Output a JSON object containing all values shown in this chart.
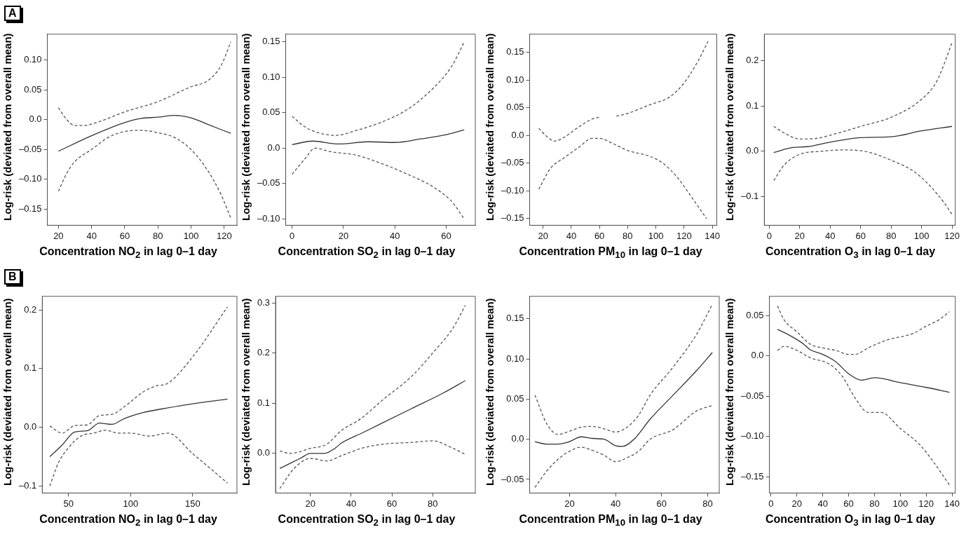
{
  "chart_data": [
    {
      "type": "line",
      "xlabel": "Concentration NO$_{2}$ in lag 0–1 day",
      "ylabel": "Log-risk (deviated from overall mean)",
      "annotations": [
        "A"
      ],
      "xlim": [
        13.3,
        127.7
      ],
      "ylim": [
        -0.177,
        0.143
      ],
      "xticks": [
        20,
        40,
        60,
        80,
        100,
        120
      ],
      "yticks": [
        {
          "value": -0.15,
          "label": "–0.15"
        },
        {
          "value": -0.1,
          "label": "–0.10"
        },
        {
          "value": -0.05,
          "label": "–0.05"
        },
        {
          "value": 0,
          "label": "0.0"
        },
        {
          "value": 0.05,
          "label": "0.05"
        },
        {
          "value": 0.1,
          "label": "0.10"
        }
      ],
      "series": [
        {
          "color": "#333333",
          "line_style": "solid",
          "x": [
            20,
            40,
            60,
            70,
            80,
            90,
            100,
            110,
            124
          ],
          "values": [
            -0.053,
            -0.027,
            -0.005,
            0.002,
            0.004,
            0.007,
            0.003,
            -0.008,
            -0.023
          ]
        },
        {
          "color": "#555555",
          "line_style": "dashed",
          "x": [
            20,
            25,
            30,
            35,
            45,
            60,
            80,
            100,
            110,
            118,
            124
          ],
          "values": [
            0.02,
            0.0,
            -0.01,
            -0.01,
            -0.003,
            0.013,
            0.03,
            0.055,
            0.065,
            0.09,
            0.13
          ]
        },
        {
          "color": "#555555",
          "line_style": "dashed",
          "x": [
            20,
            25,
            30,
            40,
            50,
            60,
            70,
            80,
            90,
            100,
            110,
            118,
            124
          ],
          "values": [
            -0.12,
            -0.09,
            -0.07,
            -0.05,
            -0.03,
            -0.02,
            -0.018,
            -0.022,
            -0.03,
            -0.05,
            -0.085,
            -0.125,
            -0.165
          ]
        }
      ]
    },
    {
      "type": "line",
      "xlabel": "Concentration SO$_{2}$ in lag 0–1 day",
      "ylabel": "Log-risk (deviated from overall mean)",
      "xlim": [
        -2.5,
        71.3
      ],
      "ylim": [
        -0.109,
        0.161
      ],
      "xticks": [
        0,
        20,
        40,
        60
      ],
      "yticks": [
        {
          "value": -0.1,
          "label": "–0.10"
        },
        {
          "value": -0.05,
          "label": "–0.05"
        },
        {
          "value": 0,
          "label": "0.0"
        },
        {
          "value": 0.05,
          "label": "0.05"
        },
        {
          "value": 0.1,
          "label": "0.10"
        },
        {
          "value": 0.15,
          "label": "0.15"
        }
      ],
      "series": [
        {
          "color": "#333333",
          "line_style": "solid",
          "x": [
            0,
            8,
            18,
            30,
            40,
            50,
            60,
            67
          ],
          "values": [
            0.005,
            0.01,
            0.006,
            0.009,
            0.008,
            0.013,
            0.019,
            0.026
          ]
        },
        {
          "color": "#555555",
          "line_style": "dashed",
          "x": [
            0,
            5,
            10,
            17,
            25,
            35,
            45,
            55,
            62,
            67
          ],
          "values": [
            0.045,
            0.03,
            0.022,
            0.018,
            0.025,
            0.037,
            0.055,
            0.085,
            0.115,
            0.15
          ]
        },
        {
          "color": "#555555",
          "line_style": "dashed",
          "x": [
            0,
            5,
            9,
            15,
            25,
            35,
            45,
            55,
            62,
            67
          ],
          "values": [
            -0.037,
            -0.015,
            0.0,
            -0.005,
            -0.01,
            -0.022,
            -0.037,
            -0.055,
            -0.075,
            -0.1
          ]
        }
      ]
    },
    {
      "type": "line",
      "xlabel": "Concentration PM$_{10}$ in lag 0–1 day",
      "ylabel": "Log-risk (deviated from overall mean)",
      "xlim": [
        10.5,
        143.2
      ],
      "ylim": [
        -0.162,
        0.183
      ],
      "xticks": [
        20,
        40,
        60,
        80,
        100,
        120,
        140
      ],
      "yticks": [
        {
          "value": -0.15,
          "label": "–0.15"
        },
        {
          "value": -0.1,
          "label": "–0.10"
        },
        {
          "value": -0.05,
          "label": "–0.05"
        },
        {
          "value": 0,
          "label": "0.0"
        },
        {
          "value": 0.05,
          "label": "0.05"
        },
        {
          "value": 0.1,
          "label": "0.10"
        },
        {
          "value": 0.15,
          "label": "0.15"
        }
      ],
      "series": [
        {
          "color": "#555555",
          "line_style": "dashed",
          "x": [
            17,
            22,
            28,
            35,
            45,
            55,
            60,
            66,
            72,
            80,
            95,
            110,
            120,
            130,
            137
          ],
          "values": [
            0.013,
            0.0,
            -0.01,
            -0.003,
            0.015,
            0.03,
            0.033,
            null,
            0.035,
            0.04,
            0.055,
            0.07,
            0.095,
            0.135,
            0.17
          ]
        },
        {
          "color": "#555555",
          "line_style": "dashed",
          "x": [
            17,
            25,
            35,
            45,
            55,
            60,
            70,
            80,
            95,
            105,
            115,
            125,
            136
          ],
          "values": [
            -0.097,
            -0.06,
            -0.04,
            -0.022,
            -0.005,
            -0.005,
            -0.015,
            -0.027,
            -0.037,
            -0.05,
            -0.075,
            -0.11,
            -0.15
          ]
        }
      ]
    },
    {
      "type": "line",
      "xlabel": "Concentration O$_{3}$ in lag 0–1 day",
      "ylabel": "Log-risk (deviated from overall mean)",
      "xlim": [
        -3.2,
        122.1
      ],
      "ylim": [
        -0.164,
        0.259
      ],
      "xticks": [
        0,
        20,
        40,
        60,
        80,
        100,
        120
      ],
      "yticks": [
        {
          "value": -0.1,
          "label": "–0.1"
        },
        {
          "value": 0,
          "label": "0.0"
        },
        {
          "value": 0.1,
          "label": "0.1"
        },
        {
          "value": 0.2,
          "label": "0.2"
        }
      ],
      "series": [
        {
          "color": "#333333",
          "line_style": "solid",
          "x": [
            3,
            15,
            25,
            40,
            60,
            80,
            100,
            120
          ],
          "values": [
            -0.003,
            0.008,
            0.01,
            0.02,
            0.03,
            0.032,
            0.045,
            0.055
          ]
        },
        {
          "color": "#555555",
          "line_style": "dashed",
          "x": [
            3,
            10,
            20,
            30,
            45,
            60,
            80,
            100,
            110,
            120
          ],
          "values": [
            0.055,
            0.04,
            0.027,
            0.028,
            0.04,
            0.055,
            0.075,
            0.115,
            0.155,
            0.24
          ]
        },
        {
          "color": "#555555",
          "line_style": "dashed",
          "x": [
            3,
            10,
            20,
            35,
            50,
            65,
            80,
            95,
            105,
            115,
            120
          ],
          "values": [
            -0.065,
            -0.03,
            -0.007,
            0.0,
            0.003,
            -0.002,
            -0.02,
            -0.045,
            -0.075,
            -0.115,
            -0.14
          ]
        }
      ]
    },
    {
      "type": "line",
      "xlabel": "Concentration NO$_{2}$ in lag 0–1 day",
      "ylabel": "Log-risk (deviated from overall mean)",
      "annotations": [
        "B"
      ],
      "xlim": [
        28.9,
        185.6
      ],
      "ylim": [
        -0.112,
        0.223
      ],
      "xticks": [
        50,
        100,
        150
      ],
      "yticks": [
        {
          "value": -0.1,
          "label": "–0.1"
        },
        {
          "value": 0,
          "label": "0.0"
        },
        {
          "value": 0.1,
          "label": "0.1"
        },
        {
          "value": 0.2,
          "label": "0.2"
        }
      ],
      "series": [
        {
          "color": "#333333",
          "line_style": "solid",
          "x": [
            35,
            45,
            55,
            65,
            75,
            85,
            95,
            110,
            130,
            150,
            178
          ],
          "values": [
            -0.05,
            -0.03,
            -0.008,
            -0.006,
            0.007,
            0.005,
            0.015,
            0.025,
            0.033,
            0.04,
            0.048
          ]
        },
        {
          "color": "#555555",
          "line_style": "dashed",
          "x": [
            35,
            45,
            55,
            65,
            75,
            85,
            95,
            110,
            120,
            130,
            150,
            178
          ],
          "values": [
            0.002,
            -0.01,
            0.003,
            0.004,
            0.02,
            0.022,
            0.035,
            0.06,
            0.07,
            0.075,
            0.12,
            0.205
          ]
        },
        {
          "color": "#555555",
          "line_style": "dashed",
          "x": [
            35,
            42,
            50,
            60,
            70,
            80,
            90,
            100,
            115,
            130,
            150,
            178
          ],
          "values": [
            -0.1,
            -0.06,
            -0.035,
            -0.015,
            -0.01,
            -0.005,
            -0.01,
            -0.01,
            -0.015,
            -0.01,
            -0.045,
            -0.095
          ]
        }
      ]
    },
    {
      "type": "line",
      "xlabel": "Concentration SO$_{2}$ in lag 0–1 day",
      "ylabel": "Log-risk (deviated from overall mean)",
      "xlim": [
        2.9,
        100.9
      ],
      "ylim": [
        -0.079,
        0.313
      ],
      "xticks": [
        20,
        40,
        60,
        80
      ],
      "yticks": [
        {
          "value": 0,
          "label": "0.0"
        },
        {
          "value": 0.1,
          "label": "0.1"
        },
        {
          "value": 0.2,
          "label": "0.2"
        },
        {
          "value": 0.3,
          "label": "0.3"
        }
      ],
      "series": [
        {
          "color": "#333333",
          "line_style": "solid",
          "x": [
            5,
            15,
            20,
            27,
            32,
            35,
            45,
            55,
            70,
            85,
            96
          ],
          "values": [
            -0.03,
            -0.01,
            0.0,
            0.0,
            0.01,
            0.02,
            0.04,
            0.06,
            0.09,
            0.12,
            0.145
          ]
        },
        {
          "color": "#555555",
          "line_style": "dashed",
          "x": [
            5,
            10,
            20,
            28,
            35,
            45,
            55,
            70,
            80,
            90,
            96
          ],
          "values": [
            0.005,
            0.0,
            0.01,
            0.018,
            0.045,
            0.07,
            0.105,
            0.155,
            0.2,
            0.25,
            0.295
          ]
        },
        {
          "color": "#555555",
          "line_style": "dashed",
          "x": [
            5,
            12,
            20,
            28,
            35,
            45,
            55,
            70,
            80,
            90,
            96
          ],
          "values": [
            -0.07,
            -0.03,
            -0.01,
            -0.015,
            -0.005,
            0.01,
            0.018,
            0.022,
            0.025,
            0.01,
            -0.002
          ]
        }
      ]
    },
    {
      "type": "line",
      "xlabel": "Concentration PM$_{10}$ in lag 0–1 day",
      "ylabel": "Log-risk (deviated from overall mean)",
      "xlim": [
        2.7,
        85.0
      ],
      "ylim": [
        -0.067,
        0.178
      ],
      "xticks": [
        20,
        40,
        60,
        80
      ],
      "yticks": [
        {
          "value": -0.05,
          "label": "–0.05"
        },
        {
          "value": 0,
          "label": "0.0"
        },
        {
          "value": 0.05,
          "label": "0.05"
        },
        {
          "value": 0.1,
          "label": "0.10"
        },
        {
          "value": 0.15,
          "label": "0.15"
        }
      ],
      "series": [
        {
          "color": "#333333",
          "line_style": "solid",
          "x": [
            5,
            10,
            15,
            20,
            25,
            30,
            35,
            40,
            43,
            48,
            55,
            65,
            75,
            82
          ],
          "values": [
            -0.003,
            -0.006,
            -0.006,
            -0.003,
            0.003,
            0.001,
            0.0,
            -0.008,
            -0.009,
            0.0,
            0.025,
            0.055,
            0.085,
            0.108
          ]
        },
        {
          "color": "#555555",
          "line_style": "dashed",
          "x": [
            5,
            10,
            15,
            20,
            25,
            30,
            35,
            40,
            45,
            50,
            55,
            65,
            75,
            82
          ],
          "values": [
            0.055,
            0.02,
            0.006,
            0.01,
            0.015,
            0.016,
            0.013,
            0.009,
            0.015,
            0.03,
            0.055,
            0.09,
            0.13,
            0.168
          ]
        },
        {
          "color": "#555555",
          "line_style": "dashed",
          "x": [
            5,
            10,
            15,
            20,
            25,
            30,
            35,
            40,
            45,
            50,
            55,
            65,
            75,
            82
          ],
          "values": [
            -0.06,
            -0.04,
            -0.025,
            -0.015,
            -0.01,
            -0.014,
            -0.02,
            -0.028,
            -0.023,
            -0.015,
            0.0,
            0.012,
            0.035,
            0.042
          ]
        }
      ]
    },
    {
      "type": "line",
      "xlabel": "Concentration O$_{3}$ in lag 0–1 day",
      "ylabel": "Log-risk (deviated from overall mean)",
      "xlim": [
        -1.3,
        142.5
      ],
      "ylim": [
        -0.17,
        0.074
      ],
      "xticks": [
        0,
        20,
        40,
        60,
        80,
        100,
        120,
        140
      ],
      "yticks": [
        {
          "value": -0.15,
          "label": "–0.15"
        },
        {
          "value": -0.1,
          "label": "–0.10"
        },
        {
          "value": -0.05,
          "label": "–0.05"
        },
        {
          "value": 0,
          "label": "0.0"
        },
        {
          "value": 0.05,
          "label": "0.05"
        }
      ],
      "series": [
        {
          "color": "#333333",
          "line_style": "solid",
          "x": [
            5,
            15,
            25,
            30,
            40,
            50,
            60,
            70,
            80,
            100,
            120,
            138
          ],
          "values": [
            0.033,
            0.025,
            0.015,
            0.008,
            0.002,
            -0.007,
            -0.022,
            -0.03,
            -0.027,
            -0.033,
            -0.039,
            -0.045
          ]
        },
        {
          "color": "#555555",
          "line_style": "dashed",
          "x": [
            5,
            10,
            20,
            30,
            40,
            50,
            60,
            65,
            75,
            90,
            110,
            120,
            130,
            138
          ],
          "values": [
            0.062,
            0.045,
            0.03,
            0.015,
            0.01,
            0.007,
            0.002,
            0.002,
            0.01,
            0.02,
            0.028,
            0.037,
            0.045,
            0.055
          ]
        },
        {
          "color": "#555555",
          "line_style": "dashed",
          "x": [
            5,
            10,
            20,
            30,
            45,
            55,
            65,
            75,
            85,
            100,
            115,
            125,
            138
          ],
          "values": [
            0.007,
            0.012,
            0.007,
            -0.002,
            -0.01,
            -0.025,
            -0.052,
            -0.07,
            -0.07,
            -0.09,
            -0.11,
            -0.13,
            -0.16
          ]
        }
      ]
    }
  ]
}
